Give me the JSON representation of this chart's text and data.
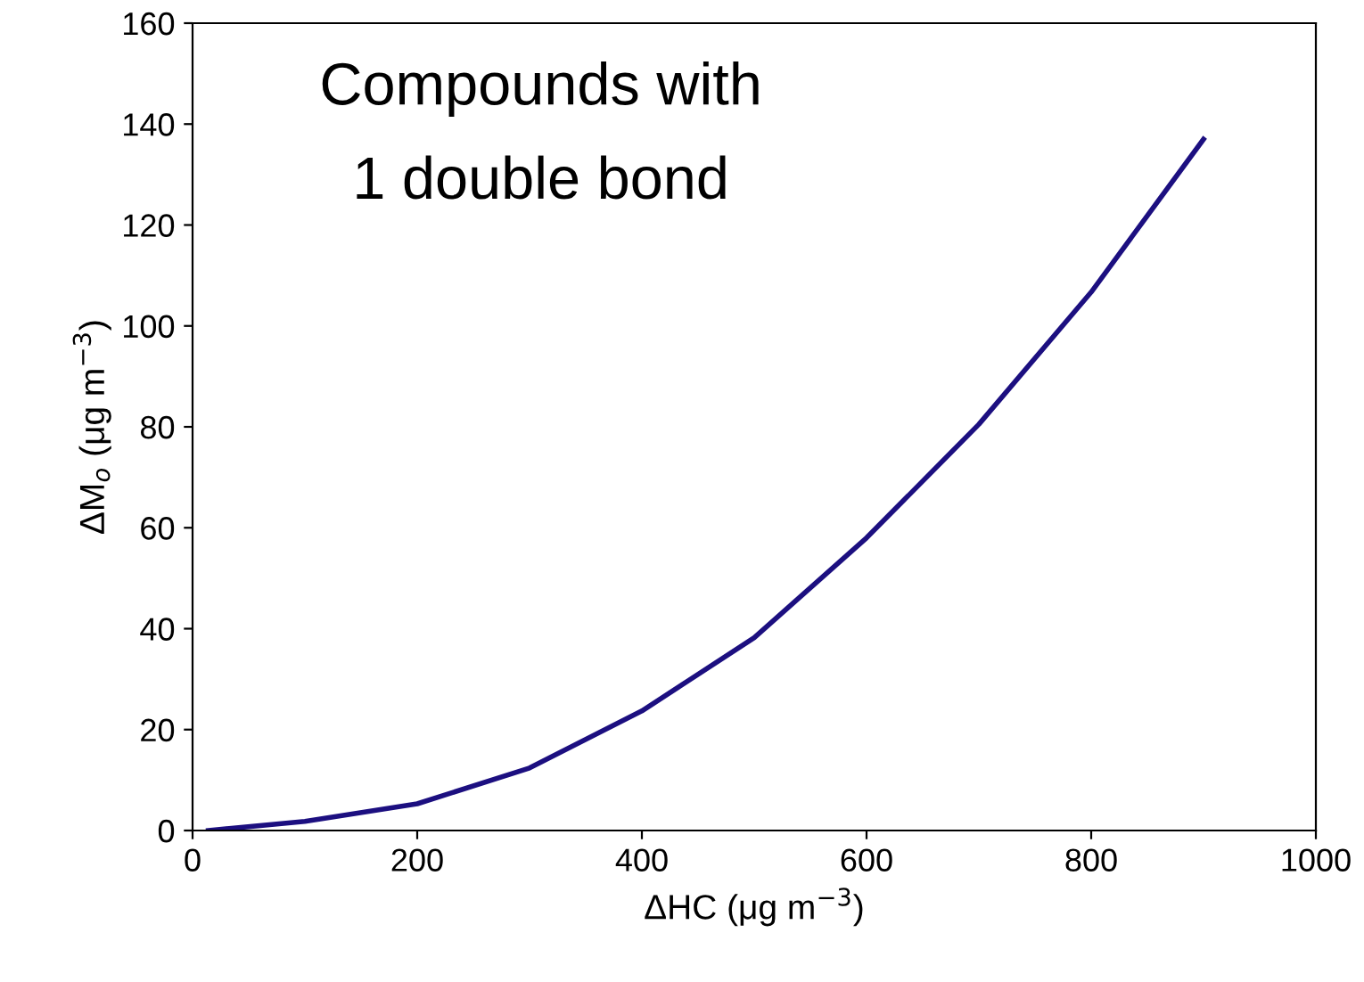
{
  "chart_data": {
    "type": "line",
    "xlabel": "ΔHC (μg m$^{−3}$)",
    "ylabel": "ΔM$_{o}$ (μg m$^{−3}$)",
    "annotations": [
      "Compounds with\n1 double bond"
    ],
    "x": [
      14,
      100,
      200,
      300,
      400,
      500,
      600,
      700,
      800,
      900
    ],
    "series": [
      {
        "color": "#1c0f80",
        "values": [
          0,
          1.8,
          5.3,
          12.4,
          23.7,
          38.2,
          58,
          80.5,
          106.7,
          137
        ]
      }
    ],
    "xlim": [
      0,
      1000
    ],
    "xticks": [
      0,
      200,
      400,
      600,
      800,
      1000
    ],
    "ylim": [
      0,
      160
    ],
    "yticks": [
      0,
      20,
      40,
      60,
      80,
      100,
      120,
      140,
      160
    ],
    "grid": false,
    "legend": false,
    "marker": "none",
    "line_style": "solid"
  }
}
